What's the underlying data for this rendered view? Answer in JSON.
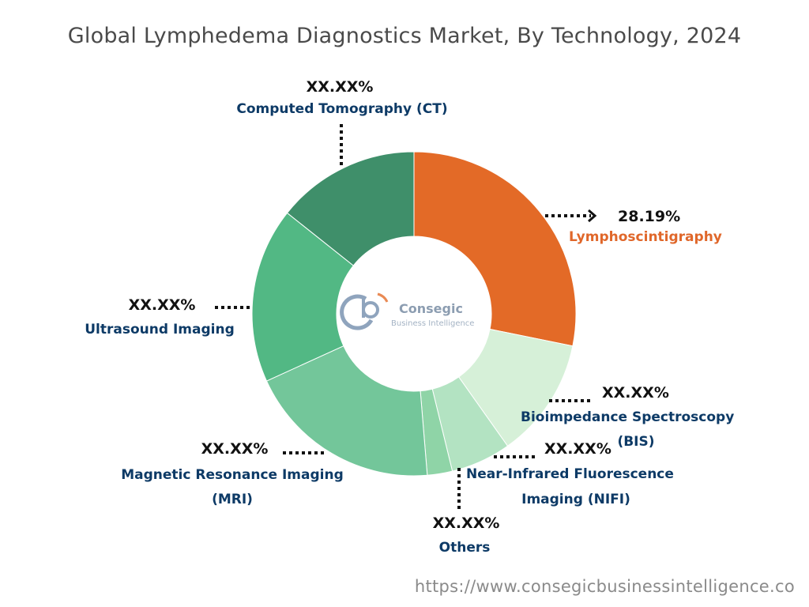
{
  "chart_data": {
    "type": "pie",
    "title": "Global Lymphedema Diagnostics Market, By Technology, 2024",
    "donut": true,
    "slices": [
      {
        "label": "Lymphoscintigraphy",
        "label_lines": [
          "Lymphoscintigraphy"
        ],
        "value_label": "28.19%",
        "value": 28.19,
        "color": "#e36a27"
      },
      {
        "label": "Bioimpedance Spectroscopy (BIS)",
        "label_lines": [
          "Bioimpedance Spectroscopy",
          "(BIS)"
        ],
        "value_label": "XX.XX%",
        "value": 12,
        "color": "#d6f0d8"
      },
      {
        "label": "Near-Infrared Fluorescence Imaging (NIFI)",
        "label_lines": [
          "Near-Infrared Fluorescence",
          "Imaging (NIFI)"
        ],
        "value_label": "XX.XX%",
        "value": 6,
        "color": "#b3e3c2"
      },
      {
        "label": "Others",
        "label_lines": [
          "Others"
        ],
        "value_label": "XX.XX%",
        "value": 2.5,
        "color": "#8fd4a7"
      },
      {
        "label": "Magnetic Resonance Imaging (MRI)",
        "label_lines": [
          "Magnetic Resonance Imaging",
          "(MRI)"
        ],
        "value_label": "XX.XX%",
        "value": 19.5,
        "color": "#73c69a"
      },
      {
        "label": "Ultrasound Imaging",
        "label_lines": [
          "Ultrasound Imaging"
        ],
        "value_label": "XX.XX%",
        "value": 17.5,
        "color": "#52b884"
      },
      {
        "label": "Computed Tomography (CT)",
        "label_lines": [
          "Computed Tomography (CT)"
        ],
        "value_label": "XX.XX%",
        "value": 14.31,
        "color": "#3f8f6a"
      }
    ],
    "legend": "none"
  },
  "logo": {
    "name": "Consegic",
    "tagline": "Business Intelligence"
  },
  "footer": {
    "url": "https://www.consegicbusinessintelligence.co"
  }
}
